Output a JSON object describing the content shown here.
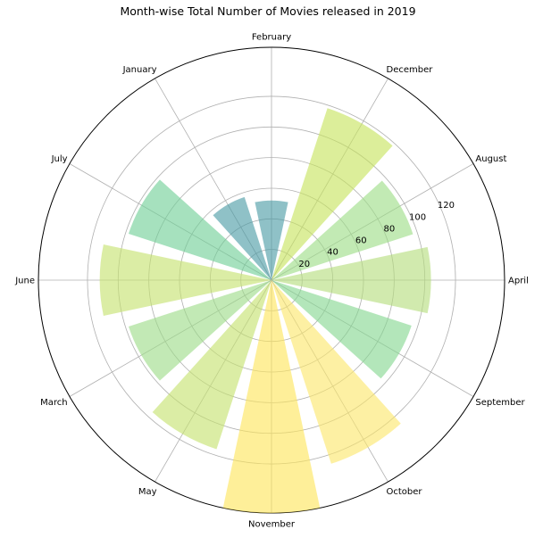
{
  "chart_data": {
    "type": "polar-bar",
    "title": "Month-wise Total Number of Movies released in 2019",
    "categories": [
      "April",
      "August",
      "December",
      "February",
      "January",
      "July",
      "June",
      "March",
      "May",
      "November",
      "October",
      "September"
    ],
    "values": [
      104,
      97,
      118,
      52,
      57,
      98,
      112,
      98,
      116,
      152,
      126,
      96
    ],
    "bar_colors": [
      "#b5dd7c",
      "#9ddd86",
      "#c6e35c",
      "#4a9ba5",
      "#4a9ba5",
      "#6fcf96",
      "#c5e26e",
      "#9cdc87",
      "#c5e26e",
      "#fde55a",
      "#fce76a",
      "#84d68f"
    ],
    "radial_ticks": [
      20,
      40,
      60,
      80,
      100,
      120
    ],
    "rlim": [
      0,
      152
    ],
    "grid": true
  }
}
